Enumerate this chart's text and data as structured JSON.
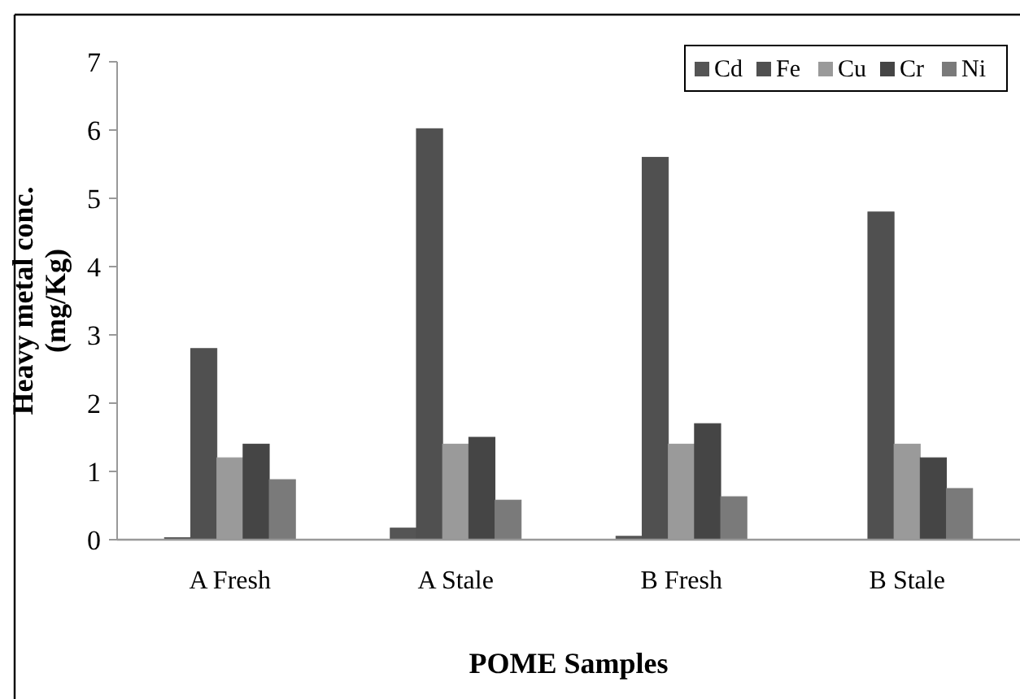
{
  "chart_data": {
    "type": "bar",
    "xlabel": "POME Samples",
    "ylabel": "Heavy metal conc. (mg/Kg)",
    "categories": [
      "A Fresh",
      "A Stale",
      "B Fresh",
      "B Stale"
    ],
    "series": [
      {
        "name": "Cd",
        "color": "#555555",
        "values": [
          0.03,
          0.17,
          0.05,
          0
        ]
      },
      {
        "name": "Fe",
        "color": "#505050",
        "values": [
          2.8,
          6.02,
          5.6,
          4.8
        ]
      },
      {
        "name": "Cu",
        "color": "#9a9a9a",
        "values": [
          1.2,
          1.4,
          1.4,
          1.4
        ]
      },
      {
        "name": "Cr",
        "color": "#454545",
        "values": [
          1.4,
          1.5,
          1.7,
          1.2
        ]
      },
      {
        "name": "Ni",
        "color": "#7a7a7a",
        "values": [
          0.88,
          0.58,
          0.63,
          0.75
        ]
      }
    ],
    "ylim": [
      0,
      7
    ],
    "yticks": [
      0,
      1,
      2,
      3,
      4,
      5,
      6,
      7
    ],
    "grid": false,
    "legend": "top right"
  }
}
